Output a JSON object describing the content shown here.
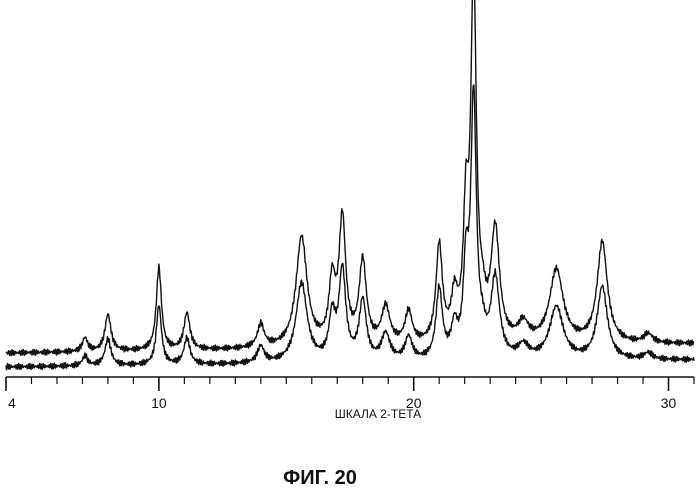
{
  "chart_data": {
    "type": "line",
    "xlabel": "ШКАЛА 2-ТЕТА",
    "caption": "ФИГ. 20",
    "xlim": [
      4,
      31
    ],
    "major_ticks": [
      4,
      10,
      20,
      30
    ],
    "minor_tick_step": 1,
    "grid": false,
    "legend": "none",
    "peaks": [
      {
        "x": 7.1,
        "h": 0.03,
        "w": 0.12
      },
      {
        "x": 8.0,
        "h": 0.08,
        "w": 0.14
      },
      {
        "x": 10.0,
        "h": 0.18,
        "w": 0.12
      },
      {
        "x": 11.1,
        "h": 0.08,
        "w": 0.14
      },
      {
        "x": 14.0,
        "h": 0.05,
        "w": 0.16
      },
      {
        "x": 15.6,
        "h": 0.24,
        "w": 0.26
      },
      {
        "x": 16.8,
        "h": 0.13,
        "w": 0.15
      },
      {
        "x": 17.2,
        "h": 0.27,
        "w": 0.16
      },
      {
        "x": 18.0,
        "h": 0.18,
        "w": 0.17
      },
      {
        "x": 18.9,
        "h": 0.08,
        "w": 0.2
      },
      {
        "x": 19.8,
        "h": 0.07,
        "w": 0.17
      },
      {
        "x": 21.0,
        "h": 0.21,
        "w": 0.15
      },
      {
        "x": 21.6,
        "h": 0.09,
        "w": 0.15
      },
      {
        "x": 22.05,
        "h": 0.25,
        "w": 0.12
      },
      {
        "x": 22.35,
        "h": 0.78,
        "w": 0.13
      },
      {
        "x": 22.7,
        "h": 0.05,
        "w": 0.15
      },
      {
        "x": 23.2,
        "h": 0.24,
        "w": 0.2
      },
      {
        "x": 24.3,
        "h": 0.04,
        "w": 0.25
      },
      {
        "x": 25.6,
        "h": 0.16,
        "w": 0.32
      },
      {
        "x": 27.4,
        "h": 0.22,
        "w": 0.24
      },
      {
        "x": 29.2,
        "h": 0.02,
        "w": 0.2
      }
    ],
    "series": [
      {
        "baseline": 0.03,
        "scale": 1.0,
        "drift": 0.02
      },
      {
        "baseline": 0.0,
        "scale": 0.72,
        "drift": 0.015
      }
    ]
  }
}
